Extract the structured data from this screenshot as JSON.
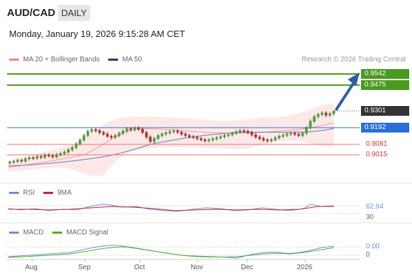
{
  "header": {
    "pair": "AUD/CAD",
    "timeframe_button": "DAILY",
    "datetime": "Monday, January 19, 2026 9:15:28 AM CET"
  },
  "main_legend": {
    "ma20": "MA 20 + Bollinger Bands",
    "ma50": "MA 50",
    "credit": "Research © 2026 Trading Central"
  },
  "levels": {
    "r2": "0.9542",
    "r1": "0.9475",
    "last": "0.9301",
    "pivot": "0.9192",
    "s1": "0.9081",
    "s2": "0.9015"
  },
  "rsi": {
    "label": "RSI",
    "ma_label": "9MA",
    "value": "62.94",
    "level_low": "30"
  },
  "macd": {
    "label": "MACD",
    "signal_label": "MACD Signal",
    "value": "0.00",
    "zero": "0"
  },
  "x_axis": [
    "Aug",
    "Sep",
    "Oct",
    "Nov",
    "Dec",
    "2026"
  ],
  "colors": {
    "green": "#4a9a1e",
    "blue": "#2b6fd6",
    "red": "#e57373",
    "dark": "#333333",
    "ma50": "#1f3a6b"
  },
  "chart_data": {
    "type": "candlestick",
    "y_scale": "price",
    "horizontal_levels": [
      0.9542,
      0.9475,
      0.9301,
      0.9192,
      0.9081,
      0.9015
    ],
    "closes_approx": [
      0.8962,
      0.8968,
      0.8975,
      0.897,
      0.8985,
      0.8992,
      0.899,
      0.9,
      0.8995,
      0.901,
      0.9005,
      0.8998,
      0.9012,
      0.902,
      0.903,
      0.9045,
      0.906,
      0.9085,
      0.911,
      0.914,
      0.9168,
      0.918,
      0.9172,
      0.916,
      0.915,
      0.9135,
      0.9128,
      0.914,
      0.9155,
      0.917,
      0.9185,
      0.9178,
      0.919,
      0.9182,
      0.916,
      0.913,
      0.91,
      0.912,
      0.914,
      0.915,
      0.9158,
      0.9165,
      0.917,
      0.9162,
      0.915,
      0.914,
      0.9132,
      0.9128,
      0.912,
      0.9112,
      0.9105,
      0.911,
      0.9118,
      0.9125,
      0.9132,
      0.914,
      0.9145,
      0.9155,
      0.9165,
      0.9172,
      0.9168,
      0.916,
      0.9145,
      0.913,
      0.912,
      0.911,
      0.9105,
      0.9112,
      0.9125,
      0.9135,
      0.9142,
      0.915,
      0.9155,
      0.9148,
      0.914,
      0.9155,
      0.919,
      0.9235,
      0.9265,
      0.928,
      0.929,
      0.9275,
      0.9285,
      0.9301
    ]
  }
}
